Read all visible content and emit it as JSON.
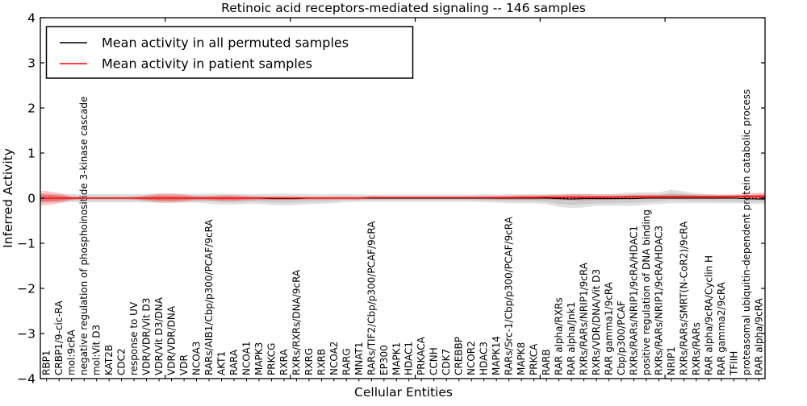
{
  "title": "Retinoic acid receptors-mediated signaling -- 146 samples",
  "axes": {
    "ylabel": "Inferred Activity",
    "xlabel": "Cellular Entities",
    "yticks": [
      "4",
      "3",
      "2",
      "1",
      "0",
      "−1",
      "−2",
      "−3",
      "−4"
    ],
    "ylim": [
      -4,
      4
    ]
  },
  "legend": {
    "entries": [
      {
        "label": "Mean activity in all permuted samples",
        "color": "#000000"
      },
      {
        "label": "Mean activity in patient samples",
        "color": "#ff0000"
      }
    ]
  },
  "colors": {
    "permuted_line": "#000000",
    "patient_line": "#ff0000",
    "permuted_band": "rgba(130,130,130,0.25)",
    "permuted_band_inner": "rgba(130,130,130,0.22)",
    "patient_band": "rgba(255,0,0,0.22)",
    "patient_band_inner": "rgba(255,0,0,0.30)"
  },
  "chart_data": {
    "type": "line",
    "title": "Retinoic acid receptors-mediated signaling -- 146 samples",
    "xlabel": "Cellular Entities",
    "ylabel": "Inferred Activity",
    "ylim": [
      -4,
      4
    ],
    "grid": false,
    "legend_position": "upper left",
    "zero_dashed_line": true,
    "categories": [
      "RBP1",
      "CRBP1/9-cic-RA",
      "mol:9cRA",
      "negative regulation of phosphoinositide 3-kinase cascade",
      "mol:Vit D3",
      "KAT2B",
      "CDC2",
      "response to UV",
      "VDR/VDR/Vit D3",
      "VDR/Vit D3/DNA",
      "VDR/VDR/DNA",
      "VDR",
      "NCOA3",
      "RARs/AIB1/Cbp/p300/PCAF/9cRA",
      "AKT1",
      "RARA",
      "NCOA1",
      "MAPK3",
      "PRKCG",
      "RXRA",
      "RXRs/RXRs/DNA/9cRA",
      "RXRG",
      "RXRB",
      "NCOA2",
      "RARG",
      "MNAT1",
      "RARs/TIF2/Cbp/p300/PCAF/9cRA",
      "EP300",
      "MAPK1",
      "HDAC1",
      "PRKACA",
      "CCNH",
      "CDK7",
      "CREBBP",
      "NCOR2",
      "HDAC3",
      "MAPK14",
      "RARs/Src-1/Cbp/p300/PCAF/9cRA",
      "MAPK8",
      "PRKCA",
      "RARB",
      "RAR alpha/RXRs",
      "RAR alpha/Jnk1",
      "RXRs/RARs/NRIP1/9cRA",
      "RXRs/VDR/DNA/Vit D3",
      "RAR gamma1/9cRA",
      "Cbp/p300/PCAF",
      "RXRs/RARs/NRIP1/9cRA/HDAC1",
      "positive regulation of DNA binding",
      "RXRs/RARs/NRIP1/9cRA/HDAC3",
      "NRIP1",
      "RXRs/RARs/SMRT(N-CoR2)/9cRA",
      "RXRs/RARs",
      "RAR alpha/9cRA/Cyclin H",
      "RAR gamma2/9cRA",
      "TFIIH",
      "proteasomal ubiquitin-dependent protein catabolic process",
      "RAR alpha/9cRA"
    ],
    "series": [
      {
        "name": "Mean activity in all permuted samples",
        "color": "#000000",
        "values": [
          0,
          0,
          0,
          0,
          0,
          0,
          0,
          0,
          0,
          0,
          0,
          0,
          0,
          0,
          0,
          0,
          0,
          0,
          -0.01,
          -0.01,
          -0.01,
          0,
          0,
          0,
          0,
          0,
          0,
          0,
          0,
          0,
          0,
          0,
          0,
          0,
          0,
          0,
          0,
          0,
          0,
          0,
          0,
          -0.01,
          -0.02,
          -0.01,
          -0.01,
          -0.01,
          -0.01,
          -0.01,
          0,
          0,
          0,
          0,
          0,
          0,
          0,
          0,
          -0.01,
          -0.02
        ],
        "band_mean": [
          0,
          0,
          0,
          0,
          0,
          0,
          0,
          0,
          0,
          0,
          0,
          0,
          0,
          -0.01,
          -0.02,
          -0.02,
          -0.02,
          -0.02,
          -0.03,
          -0.03,
          -0.03,
          -0.02,
          -0.02,
          -0.01,
          0,
          0,
          0,
          0,
          0,
          0,
          0,
          0,
          0,
          0,
          0,
          0,
          -0.01,
          -0.01,
          -0.01,
          -0.01,
          -0.02,
          -0.05,
          -0.06,
          -0.05,
          -0.04,
          -0.04,
          -0.03,
          -0.02,
          -0.01,
          0,
          0.04,
          0.02,
          0,
          -0.01,
          -0.02,
          -0.02,
          -0.03,
          -0.03
        ],
        "band_half_width": [
          0.1,
          0.1,
          0.09,
          0.09,
          0.09,
          0.09,
          0.09,
          0.09,
          0.1,
          0.1,
          0.1,
          0.1,
          0.1,
          0.11,
          0.12,
          0.12,
          0.11,
          0.11,
          0.12,
          0.13,
          0.12,
          0.11,
          0.1,
          0.1,
          0.09,
          0.08,
          0.08,
          0.08,
          0.08,
          0.08,
          0.08,
          0.08,
          0.08,
          0.08,
          0.08,
          0.09,
          0.09,
          0.1,
          0.1,
          0.1,
          0.11,
          0.14,
          0.16,
          0.15,
          0.13,
          0.13,
          0.14,
          0.15,
          0.14,
          0.13,
          0.15,
          0.13,
          0.11,
          0.1,
          0.09,
          0.09,
          0.09,
          0.1
        ]
      },
      {
        "name": "Mean activity in patient samples",
        "color": "#ff0000",
        "values": [
          0,
          0,
          0,
          0,
          0,
          0,
          0,
          0,
          0,
          0,
          0,
          0,
          0,
          0,
          0,
          0,
          0,
          0,
          0,
          0,
          0,
          0,
          0,
          0,
          0,
          0,
          0.01,
          0.01,
          0.01,
          0.01,
          0.01,
          0.01,
          0.01,
          0.01,
          0.01,
          0.01,
          0.01,
          0.01,
          0.015,
          0.015,
          0.02,
          0.02,
          0.02,
          0.02,
          0.02,
          0.02,
          0.025,
          0.03,
          0.03,
          0.03,
          0.03,
          0.03,
          0.03,
          0.03,
          0.03,
          0.035,
          0.04,
          0.04
        ],
        "band_mean": [
          0,
          0,
          0,
          0,
          0,
          0,
          0,
          0,
          0,
          0,
          0,
          0,
          0,
          0,
          0,
          0,
          0,
          0,
          0,
          0,
          0,
          0,
          0,
          0,
          0,
          0,
          0.01,
          0.01,
          0.01,
          0.01,
          0.01,
          0.01,
          0.01,
          0.01,
          0.01,
          0.01,
          0.01,
          0.01,
          0.015,
          0.015,
          0.02,
          0.02,
          0.02,
          0.02,
          0.02,
          0.02,
          0.025,
          0.03,
          0.03,
          0.03,
          0.03,
          0.03,
          0.03,
          0.03,
          0.03,
          0.035,
          0.04,
          0.04
        ],
        "band_half_width": [
          0.16,
          0.11,
          0.04,
          0.025,
          0.02,
          0.02,
          0.02,
          0.03,
          0.06,
          0.1,
          0.1,
          0.08,
          0.05,
          0.05,
          0.07,
          0.07,
          0.05,
          0.04,
          0.04,
          0.04,
          0.035,
          0.03,
          0.03,
          0.03,
          0.03,
          0.03,
          0.03,
          0.03,
          0.03,
          0.03,
          0.03,
          0.03,
          0.03,
          0.03,
          0.03,
          0.035,
          0.04,
          0.045,
          0.05,
          0.05,
          0.05,
          0.06,
          0.07,
          0.07,
          0.06,
          0.06,
          0.05,
          0.05,
          0.05,
          0.05,
          0.05,
          0.05,
          0.05,
          0.05,
          0.05,
          0.05,
          0.06,
          0.08
        ]
      }
    ]
  }
}
